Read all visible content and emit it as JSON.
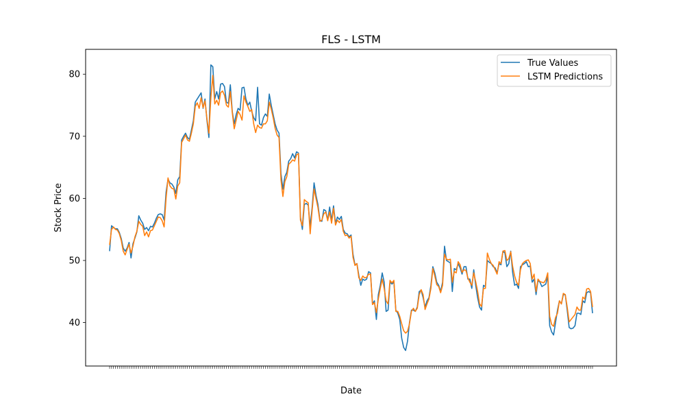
{
  "chart_data": {
    "type": "line",
    "title": "FLS - LSTM",
    "xlabel": "Date",
    "ylabel": "Stock Price",
    "ylim": [
      33.0,
      84.0
    ],
    "yticks": [
      40,
      50,
      60,
      70,
      80
    ],
    "grid": false,
    "legend_position": "top-right",
    "colors": {
      "true_values": "#1f77b4",
      "lstm_predictions": "#ff7f0e"
    },
    "series": [
      {
        "name": "True Values",
        "values": [
          51.5,
          55.6,
          55.3,
          55.1,
          55.1,
          54.5,
          53.5,
          52.0,
          51.5,
          52.0,
          52.9,
          50.4,
          52.7,
          53.6,
          54.6,
          57.2,
          56.5,
          56.0,
          55.0,
          55.3,
          54.8,
          55.5,
          55.4,
          56.0,
          56.8,
          57.4,
          57.5,
          57.4,
          56.5,
          61.0,
          63.1,
          62.5,
          62.3,
          61.8,
          60.8,
          63.0,
          63.5,
          69.4,
          70.0,
          70.5,
          69.8,
          69.5,
          71.0,
          72.5,
          75.5,
          76.0,
          76.5,
          77.0,
          74.5,
          76.0,
          72.5,
          69.8,
          81.5,
          81.2,
          76.0,
          77.2,
          76.0,
          78.4,
          78.5,
          78.0,
          75.5,
          75.3,
          78.3,
          74.0,
          72.0,
          73.5,
          74.5,
          74.2,
          77.8,
          77.9,
          76.0,
          75.0,
          75.5,
          74.0,
          73.0,
          72.5,
          77.9,
          72.0,
          71.8,
          73.0,
          73.6,
          73.2,
          76.8,
          75.0,
          73.5,
          72.0,
          71.0,
          70.5,
          64.0,
          61.5,
          63.5,
          64.2,
          66.0,
          66.4,
          67.2,
          66.5,
          67.5,
          67.3,
          57.0,
          55.0,
          59.0,
          59.2,
          58.9,
          55.5,
          58.5,
          62.5,
          60.5,
          59.0,
          56.5,
          56.3,
          58.2,
          58.0,
          56.5,
          58.6,
          56.4,
          58.8,
          56.0,
          57.0,
          56.6,
          57.1,
          55.0,
          54.4,
          54.3,
          53.8,
          54.1,
          51.0,
          49.3,
          49.5,
          47.6,
          46.0,
          47.0,
          46.8,
          47.0,
          48.2,
          48.0,
          43.0,
          43.5,
          40.5,
          44.5,
          46.0,
          48.0,
          46.5,
          41.8,
          42.0,
          46.5,
          46.2,
          46.5,
          42.0,
          41.5,
          40.5,
          37.5,
          36.0,
          35.5,
          37.0,
          40.0,
          42.0,
          42.0,
          41.8,
          42.5,
          45.0,
          45.2,
          44.0,
          42.5,
          43.5,
          44.0,
          46.0,
          49.0,
          48.0,
          46.5,
          46.0,
          45.0,
          46.5,
          52.3,
          50.0,
          49.8,
          49.6,
          45.0,
          48.7,
          48.5,
          49.5,
          48.8,
          47.8,
          49.0,
          49.0,
          47.0,
          47.0,
          45.5,
          48.5,
          46.0,
          44.0,
          42.5,
          42.0,
          46.0,
          45.8,
          50.0,
          49.7,
          49.5,
          49.0,
          48.8,
          48.0,
          49.5,
          49.3,
          51.5,
          51.2,
          49.0,
          49.5,
          51.5,
          48.0,
          46.0,
          46.2,
          45.5,
          49.0,
          49.3,
          49.5,
          49.8,
          49.0,
          49.1,
          46.5,
          47.0,
          44.5,
          46.8,
          46.5,
          45.8,
          46.0,
          46.2,
          47.5,
          39.5,
          38.5,
          38.0,
          40.0,
          42.0,
          43.5,
          43.0,
          44.5,
          44.5,
          42.0,
          39.2,
          39.0,
          39.1,
          39.5,
          41.5,
          41.5,
          41.3,
          43.5,
          43.2,
          44.8,
          45.0,
          44.8,
          41.5
        ]
      },
      {
        "name": "LSTM Predictions",
        "values": [
          52.5,
          55.0,
          55.4,
          55.0,
          54.9,
          54.3,
          53.2,
          51.5,
          50.9,
          51.8,
          52.6,
          51.2,
          52.3,
          53.8,
          54.7,
          56.3,
          55.8,
          55.5,
          54.0,
          54.6,
          53.8,
          54.8,
          54.9,
          55.6,
          56.3,
          57.0,
          56.9,
          56.4,
          55.4,
          60.0,
          63.3,
          62.0,
          61.6,
          61.5,
          59.9,
          62.0,
          62.5,
          69.0,
          69.6,
          70.2,
          69.4,
          69.2,
          70.5,
          72.0,
          74.8,
          75.4,
          74.5,
          76.2,
          74.6,
          75.7,
          72.8,
          70.5,
          76.2,
          79.8,
          75.2,
          75.8,
          75.0,
          77.0,
          77.3,
          76.6,
          75.0,
          74.7,
          77.2,
          73.8,
          71.2,
          72.6,
          74.0,
          73.5,
          72.6,
          76.5,
          75.5,
          74.8,
          74.0,
          74.3,
          72.0,
          70.6,
          71.8,
          71.4,
          71.3,
          72.0,
          72.0,
          72.5,
          75.5,
          74.4,
          73.0,
          71.3,
          70.2,
          69.8,
          63.0,
          60.3,
          62.7,
          63.5,
          65.5,
          65.8,
          66.2,
          66.0,
          67.0,
          67.2,
          56.5,
          55.6,
          59.8,
          59.5,
          59.3,
          54.3,
          58.0,
          61.5,
          60.0,
          58.5,
          56.3,
          56.5,
          57.5,
          57.8,
          56.4,
          57.8,
          56.0,
          58.4,
          55.7,
          56.5,
          56.1,
          56.6,
          54.7,
          54.0,
          54.1,
          53.6,
          53.9,
          50.5,
          49.2,
          49.5,
          47.2,
          46.8,
          47.5,
          47.2,
          47.3,
          47.8,
          47.8,
          42.9,
          43.2,
          41.6,
          43.8,
          45.5,
          47.0,
          45.5,
          43.5,
          43.0,
          46.8,
          46.4,
          46.8,
          41.8,
          41.8,
          41.0,
          39.8,
          38.7,
          38.3,
          38.6,
          39.8,
          41.8,
          42.3,
          41.8,
          42.3,
          44.5,
          45.3,
          44.5,
          42.1,
          43.0,
          43.8,
          45.5,
          48.7,
          47.5,
          46.1,
          45.8,
          44.8,
          46.0,
          51.0,
          50.2,
          50.1,
          50.2,
          46.5,
          48.2,
          48.0,
          49.8,
          49.3,
          48.1,
          48.5,
          48.4,
          47.2,
          46.5,
          46.0,
          48.0,
          46.6,
          45.0,
          43.0,
          42.6,
          45.5,
          45.5,
          51.2,
          50.2,
          49.5,
          49.2,
          48.5,
          47.8,
          49.8,
          49.5,
          51.5,
          51.6,
          50.0,
          50.3,
          51.4,
          49.0,
          47.5,
          46.5,
          46.0,
          48.5,
          49.5,
          49.8,
          50.0,
          50.1,
          49.5,
          47.0,
          47.8,
          45.0,
          47.0,
          46.6,
          46.5,
          46.4,
          46.9,
          48.0,
          41.0,
          39.7,
          39.4,
          40.8,
          41.5,
          43.5,
          43.0,
          44.7,
          44.5,
          42.5,
          40.1,
          40.5,
          40.9,
          41.3,
          42.5,
          42.0,
          42.0,
          44.1,
          43.8,
          45.4,
          45.5,
          45.0,
          42.5
        ]
      }
    ]
  }
}
